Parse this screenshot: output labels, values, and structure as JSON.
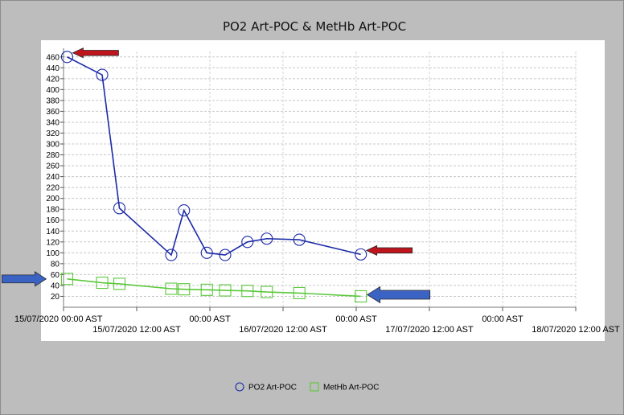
{
  "chart_data": {
    "type": "line",
    "title": "PO2 Art-POC & MetHb Art-POC",
    "xlabel": "",
    "ylabel": "",
    "x_range": [
      "2020-07-15T00:00",
      "2020-07-18T12:00"
    ],
    "ylim": [
      0,
      470
    ],
    "y_ticks": [
      20,
      40,
      60,
      80,
      100,
      120,
      140,
      160,
      180,
      200,
      220,
      240,
      260,
      280,
      300,
      320,
      340,
      360,
      380,
      400,
      420,
      440,
      460
    ],
    "x_ticks": [
      {
        "t": "2020-07-15T00:00",
        "label": "15/07/2020 00:00 AST",
        "row": 0
      },
      {
        "t": "2020-07-15T12:00",
        "label": "15/07/2020 12:00 AST",
        "row": 1
      },
      {
        "t": "2020-07-16T00:00",
        "label": "00:00 AST",
        "row": 0
      },
      {
        "t": "2020-07-16T12:00",
        "label": "16/07/2020 12:00 AST",
        "row": 1
      },
      {
        "t": "2020-07-17T00:00",
        "label": "00:00 AST",
        "row": 0
      },
      {
        "t": "2020-07-17T12:00",
        "label": "17/07/2020 12:00 AST",
        "row": 1
      },
      {
        "t": "2020-07-18T00:00",
        "label": "00:00 AST",
        "row": 0
      },
      {
        "t": "2020-07-18T12:00",
        "label": "18/07/2020 12:00 AST",
        "row": 1
      }
    ],
    "grid": true,
    "legend_position": "bottom-center",
    "series": [
      {
        "name": "PO2 Art-POC",
        "color": "#1c2aa8",
        "marker": "circle",
        "x": [
          "2020-07-15T00:35",
          "2020-07-15T06:20",
          "2020-07-15T09:10",
          "2020-07-15T17:40",
          "2020-07-15T19:45",
          "2020-07-15T23:30",
          "2020-07-16T02:30",
          "2020-07-16T06:10",
          "2020-07-16T09:20",
          "2020-07-16T14:40",
          "2020-07-17T00:45"
        ],
        "y": [
          460,
          427,
          182,
          96,
          178,
          100,
          96,
          120,
          126,
          124,
          97
        ]
      },
      {
        "name": "MetHb Art-POC",
        "color": "#5ac83a",
        "marker": "square",
        "x": [
          "2020-07-15T00:35",
          "2020-07-15T06:20",
          "2020-07-15T09:10",
          "2020-07-15T17:40",
          "2020-07-15T19:45",
          "2020-07-15T23:30",
          "2020-07-16T02:30",
          "2020-07-16T06:10",
          "2020-07-16T09:20",
          "2020-07-16T14:40",
          "2020-07-17T00:45"
        ],
        "y": [
          52,
          45,
          43,
          34,
          33,
          32,
          31,
          30,
          28,
          26,
          20
        ]
      }
    ],
    "annotations": [
      {
        "type": "arrow",
        "color": "#c0141c",
        "direction": "left",
        "points_to_series": "PO2 Art-POC",
        "points_to_index": 0
      },
      {
        "type": "arrow",
        "color": "#c0141c",
        "direction": "left",
        "points_to_series": "PO2 Art-POC",
        "points_to_index": 10
      },
      {
        "type": "arrow",
        "color": "#3b63c4",
        "direction": "right",
        "points_to_series": "MetHb Art-POC",
        "points_to_index": 0
      },
      {
        "type": "arrow",
        "color": "#3b63c4",
        "direction": "left",
        "points_to_series": "MetHb Art-POC",
        "points_to_index": 10
      }
    ]
  }
}
